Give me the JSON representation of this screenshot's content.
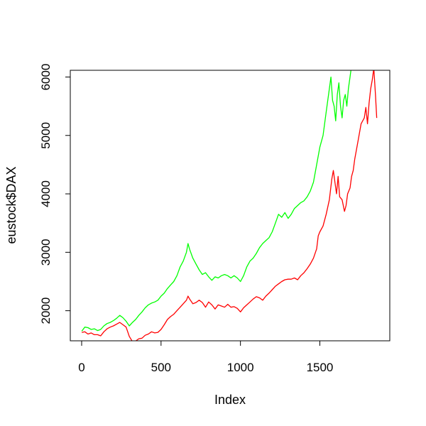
{
  "chart_data": {
    "type": "line",
    "title": "",
    "xlabel": "Index",
    "ylabel": "eustock$DAX",
    "xlim": [
      0,
      1860
    ],
    "ylim": [
      1400,
      6200
    ],
    "grid": false,
    "legend": "none",
    "x_ticks": [
      0,
      500,
      1000,
      1500
    ],
    "y_ticks": [
      2000,
      3000,
      4000,
      5000,
      6000
    ],
    "series": [
      {
        "color": "#ff0000",
        "points": [
          [
            1,
            1628
          ],
          [
            20,
            1640
          ],
          [
            40,
            1600
          ],
          [
            60,
            1620
          ],
          [
            80,
            1590
          ],
          [
            100,
            1590
          ],
          [
            120,
            1570
          ],
          [
            140,
            1640
          ],
          [
            160,
            1690
          ],
          [
            180,
            1720
          ],
          [
            200,
            1740
          ],
          [
            220,
            1770
          ],
          [
            240,
            1800
          ],
          [
            260,
            1760
          ],
          [
            280,
            1720
          ],
          [
            300,
            1560
          ],
          [
            320,
            1470
          ],
          [
            340,
            1480
          ],
          [
            360,
            1520
          ],
          [
            380,
            1530
          ],
          [
            400,
            1580
          ],
          [
            420,
            1600
          ],
          [
            440,
            1640
          ],
          [
            460,
            1620
          ],
          [
            480,
            1630
          ],
          [
            500,
            1680
          ],
          [
            520,
            1760
          ],
          [
            540,
            1850
          ],
          [
            560,
            1900
          ],
          [
            580,
            1940
          ],
          [
            600,
            2000
          ],
          [
            620,
            2060
          ],
          [
            640,
            2120
          ],
          [
            660,
            2180
          ],
          [
            670,
            2250
          ],
          [
            680,
            2200
          ],
          [
            700,
            2120
          ],
          [
            720,
            2140
          ],
          [
            740,
            2180
          ],
          [
            760,
            2140
          ],
          [
            780,
            2060
          ],
          [
            800,
            2150
          ],
          [
            820,
            2100
          ],
          [
            840,
            2030
          ],
          [
            860,
            2100
          ],
          [
            880,
            2080
          ],
          [
            900,
            2060
          ],
          [
            920,
            2110
          ],
          [
            940,
            2060
          ],
          [
            960,
            2070
          ],
          [
            980,
            2040
          ],
          [
            1000,
            1980
          ],
          [
            1020,
            2050
          ],
          [
            1040,
            2100
          ],
          [
            1060,
            2150
          ],
          [
            1080,
            2200
          ],
          [
            1100,
            2240
          ],
          [
            1120,
            2220
          ],
          [
            1140,
            2180
          ],
          [
            1160,
            2250
          ],
          [
            1180,
            2300
          ],
          [
            1200,
            2360
          ],
          [
            1220,
            2420
          ],
          [
            1240,
            2460
          ],
          [
            1260,
            2500
          ],
          [
            1280,
            2530
          ],
          [
            1300,
            2540
          ],
          [
            1320,
            2540
          ],
          [
            1340,
            2560
          ],
          [
            1360,
            2530
          ],
          [
            1380,
            2600
          ],
          [
            1400,
            2650
          ],
          [
            1420,
            2720
          ],
          [
            1440,
            2800
          ],
          [
            1460,
            2900
          ],
          [
            1480,
            3060
          ],
          [
            1490,
            3280
          ],
          [
            1500,
            3350
          ],
          [
            1520,
            3450
          ],
          [
            1540,
            3650
          ],
          [
            1560,
            3900
          ],
          [
            1575,
            4250
          ],
          [
            1585,
            4400
          ],
          [
            1595,
            4200
          ],
          [
            1605,
            4000
          ],
          [
            1615,
            4300
          ],
          [
            1625,
            3950
          ],
          [
            1640,
            3900
          ],
          [
            1655,
            3700
          ],
          [
            1665,
            3800
          ],
          [
            1675,
            4000
          ],
          [
            1690,
            4100
          ],
          [
            1700,
            4300
          ],
          [
            1710,
            4400
          ],
          [
            1720,
            4600
          ],
          [
            1740,
            4900
          ],
          [
            1760,
            5200
          ],
          [
            1780,
            5300
          ],
          [
            1790,
            5480
          ],
          [
            1800,
            5200
          ],
          [
            1810,
            5550
          ],
          [
            1820,
            5800
          ],
          [
            1830,
            5950
          ],
          [
            1840,
            6150
          ],
          [
            1850,
            5700
          ],
          [
            1858,
            5300
          ]
        ]
      },
      {
        "color": "#00ff00",
        "points": [
          [
            1,
            1650
          ],
          [
            20,
            1720
          ],
          [
            40,
            1710
          ],
          [
            60,
            1680
          ],
          [
            80,
            1690
          ],
          [
            100,
            1660
          ],
          [
            120,
            1680
          ],
          [
            140,
            1740
          ],
          [
            160,
            1780
          ],
          [
            180,
            1800
          ],
          [
            200,
            1830
          ],
          [
            220,
            1870
          ],
          [
            240,
            1920
          ],
          [
            260,
            1880
          ],
          [
            280,
            1820
          ],
          [
            300,
            1740
          ],
          [
            320,
            1800
          ],
          [
            340,
            1850
          ],
          [
            360,
            1920
          ],
          [
            380,
            1980
          ],
          [
            400,
            2050
          ],
          [
            420,
            2100
          ],
          [
            440,
            2130
          ],
          [
            460,
            2150
          ],
          [
            480,
            2180
          ],
          [
            500,
            2250
          ],
          [
            520,
            2300
          ],
          [
            540,
            2380
          ],
          [
            560,
            2440
          ],
          [
            580,
            2500
          ],
          [
            600,
            2600
          ],
          [
            620,
            2750
          ],
          [
            640,
            2850
          ],
          [
            660,
            3000
          ],
          [
            670,
            3150
          ],
          [
            680,
            3050
          ],
          [
            700,
            2900
          ],
          [
            720,
            2800
          ],
          [
            740,
            2700
          ],
          [
            760,
            2620
          ],
          [
            780,
            2650
          ],
          [
            800,
            2580
          ],
          [
            820,
            2520
          ],
          [
            840,
            2580
          ],
          [
            860,
            2560
          ],
          [
            880,
            2600
          ],
          [
            900,
            2620
          ],
          [
            920,
            2600
          ],
          [
            940,
            2560
          ],
          [
            960,
            2600
          ],
          [
            980,
            2560
          ],
          [
            1000,
            2500
          ],
          [
            1020,
            2600
          ],
          [
            1040,
            2750
          ],
          [
            1060,
            2850
          ],
          [
            1080,
            2900
          ],
          [
            1100,
            2980
          ],
          [
            1120,
            3080
          ],
          [
            1140,
            3150
          ],
          [
            1160,
            3200
          ],
          [
            1180,
            3250
          ],
          [
            1200,
            3350
          ],
          [
            1220,
            3500
          ],
          [
            1240,
            3650
          ],
          [
            1260,
            3600
          ],
          [
            1280,
            3680
          ],
          [
            1300,
            3580
          ],
          [
            1320,
            3650
          ],
          [
            1340,
            3750
          ],
          [
            1360,
            3800
          ],
          [
            1380,
            3850
          ],
          [
            1400,
            3880
          ],
          [
            1420,
            3950
          ],
          [
            1440,
            4050
          ],
          [
            1460,
            4200
          ],
          [
            1480,
            4500
          ],
          [
            1500,
            4800
          ],
          [
            1520,
            5000
          ],
          [
            1540,
            5400
          ],
          [
            1560,
            5800
          ],
          [
            1570,
            6000
          ],
          [
            1580,
            5600
          ],
          [
            1590,
            5500
          ],
          [
            1600,
            5250
          ],
          [
            1610,
            5700
          ],
          [
            1620,
            5900
          ],
          [
            1630,
            5500
          ],
          [
            1640,
            5300
          ],
          [
            1650,
            5600
          ],
          [
            1660,
            5700
          ],
          [
            1670,
            5500
          ],
          [
            1680,
            5800
          ],
          [
            1690,
            6000
          ],
          [
            1700,
            6200
          ],
          [
            1710,
            6400
          ]
        ]
      }
    ]
  }
}
